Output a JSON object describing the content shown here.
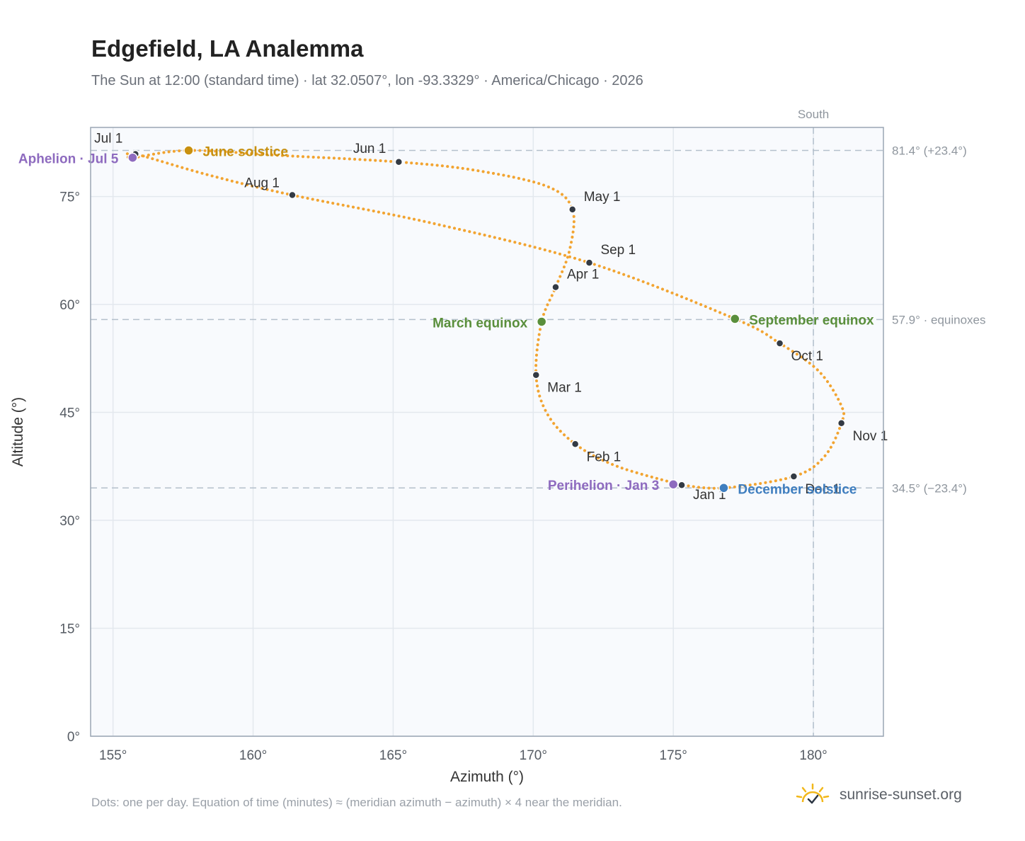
{
  "header": {
    "title": "Edgefield, LA Analemma",
    "subtitle": "The Sun at 12:00 (standard time) · lat 32.0507°, lon -93.3329° · America/Chicago · 2026"
  },
  "footer": {
    "note": "Dots: one per day. Equation of time (minutes) ≈ (meridian azimuth − azimuth) × 4 near the meridian.",
    "brand": "sunrise-sunset.org",
    "brand_icon": "sun-check-icon"
  },
  "colors": {
    "path": "#f2a431",
    "month_dot": "#333a44",
    "equinox": "#5a8f3c",
    "solstice_june": "#c8900f",
    "solstice_december": "#3f7ebf",
    "apsis": "#8e6bbf",
    "reference_line": "#b4c0cc",
    "plot_bg": "#f8fafd"
  },
  "chart_data": {
    "type": "scatter",
    "xlabel": "Azimuth (°)",
    "ylabel": "Altitude (°)",
    "xlim": [
      154.2,
      182.5
    ],
    "ylim": [
      0,
      84.6
    ],
    "x_ticks": [
      155,
      160,
      165,
      170,
      175,
      180
    ],
    "x_tick_labels": [
      "155°",
      "160°",
      "165°",
      "170°",
      "175°",
      "180°"
    ],
    "y_ticks": [
      0,
      15,
      30,
      45,
      60,
      75
    ],
    "y_tick_labels": [
      "0°",
      "15°",
      "30°",
      "45°",
      "60°",
      "75°"
    ],
    "grid": true,
    "meridian": {
      "azimuth": 180,
      "label": "South"
    },
    "reference_lines": [
      {
        "altitude": 81.4,
        "label": "81.4° (+23.4°)"
      },
      {
        "altitude": 57.9,
        "label": "57.9° · equinoxes"
      },
      {
        "altitude": 34.5,
        "label": "34.5° (−23.4°)"
      }
    ],
    "month_markers": [
      {
        "label": "Jan 1",
        "az": 175.3,
        "alt": 34.9
      },
      {
        "label": "Feb 1",
        "az": 171.5,
        "alt": 40.6
      },
      {
        "label": "Mar 1",
        "az": 170.1,
        "alt": 50.2
      },
      {
        "label": "Apr 1",
        "az": 170.8,
        "alt": 62.4
      },
      {
        "label": "May 1",
        "az": 171.4,
        "alt": 73.2
      },
      {
        "label": "Jun 1",
        "az": 165.2,
        "alt": 79.8
      },
      {
        "label": "Jul 1",
        "az": 155.8,
        "alt": 80.9
      },
      {
        "label": "Aug 1",
        "az": 161.4,
        "alt": 75.2
      },
      {
        "label": "Sep 1",
        "az": 172.0,
        "alt": 65.8
      },
      {
        "label": "Oct 1",
        "az": 178.8,
        "alt": 54.6
      },
      {
        "label": "Nov 1",
        "az": 181.0,
        "alt": 43.5
      },
      {
        "label": "Dec 1",
        "az": 179.3,
        "alt": 36.1
      }
    ],
    "events": [
      {
        "label": "March equinox",
        "az": 170.3,
        "alt": 57.6,
        "color": "equinox"
      },
      {
        "label": "September equinox",
        "az": 177.2,
        "alt": 58.0,
        "color": "equinox"
      },
      {
        "label": "June solstice",
        "az": 157.7,
        "alt": 81.4,
        "color": "solstice_june"
      },
      {
        "label": "December solstice",
        "az": 176.8,
        "alt": 34.5,
        "color": "solstice_december"
      },
      {
        "label": "Aphelion · Jul 5",
        "az": 155.7,
        "alt": 80.4,
        "color": "apsis"
      },
      {
        "label": "Perihelion · Jan 3",
        "az": 175.0,
        "alt": 35.0,
        "color": "apsis"
      }
    ],
    "series": [
      {
        "path_points": [
          [
            175.3,
            34.9
          ],
          [
            173.0,
            37.5
          ],
          [
            171.5,
            40.6
          ],
          [
            170.5,
            44.8
          ],
          [
            170.1,
            50.2
          ],
          [
            170.3,
            57.6
          ],
          [
            170.8,
            62.4
          ],
          [
            171.3,
            67.6
          ],
          [
            171.4,
            73.2
          ],
          [
            170.5,
            76.4
          ],
          [
            168.0,
            78.6
          ],
          [
            165.2,
            79.8
          ],
          [
            161.0,
            80.7
          ],
          [
            157.7,
            81.4
          ],
          [
            155.7,
            80.4
          ],
          [
            155.8,
            80.9
          ],
          [
            158.4,
            78.0
          ],
          [
            161.4,
            75.2
          ],
          [
            166.5,
            71.2
          ],
          [
            172.0,
            65.8
          ],
          [
            177.2,
            58.0
          ],
          [
            178.8,
            54.6
          ],
          [
            180.2,
            50.7
          ],
          [
            181.0,
            45.9
          ],
          [
            181.0,
            43.5
          ],
          [
            180.4,
            38.9
          ],
          [
            179.3,
            36.1
          ],
          [
            176.8,
            34.5
          ],
          [
            175.3,
            34.9
          ]
        ]
      }
    ]
  }
}
